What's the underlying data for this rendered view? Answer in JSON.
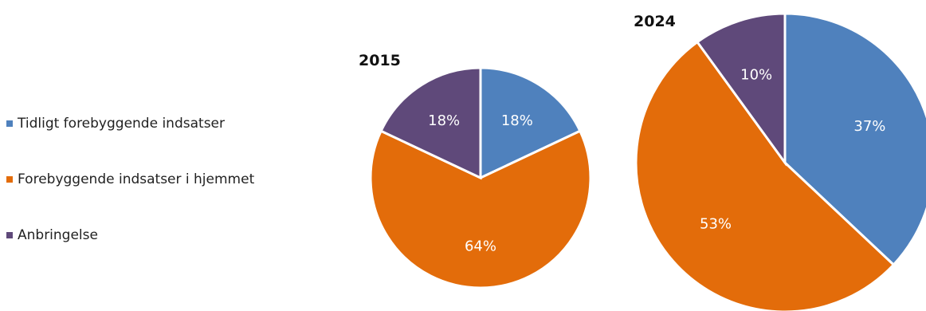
{
  "chart_data": [
    {
      "type": "pie",
      "title": "2015",
      "legend_placement": "left",
      "slices": [
        {
          "label": "Tidligt forebyggende indsatser",
          "value": 18,
          "value_label": "18%",
          "color": "#4f81bd"
        },
        {
          "label": "Forebyggende indsatser i hjemmet",
          "value": 64,
          "value_label": "64%",
          "color": "#e36c0a"
        },
        {
          "label": "Anbringelse",
          "value": 18,
          "value_label": "18%",
          "color": "#5f497a"
        }
      ]
    },
    {
      "type": "pie",
      "title": "2024",
      "legend_placement": "left",
      "slices": [
        {
          "label": "Tidligt forebyggende indsatser",
          "value": 37,
          "value_label": "37%",
          "color": "#4f81bd"
        },
        {
          "label": "Forebyggende indsatser i hjemmet",
          "value": 53,
          "value_label": "53%",
          "color": "#e36c0a"
        },
        {
          "label": "Anbringelse",
          "value": 10,
          "value_label": "10%",
          "color": "#5f497a"
        }
      ]
    }
  ],
  "legend": [
    {
      "label": "Tidligt forebyggende indsatser",
      "color": "#4f81bd"
    },
    {
      "label": "Forebyggende indsatser i hjemmet",
      "color": "#e36c0a"
    },
    {
      "label": "Anbringelse",
      "color": "#5f497a"
    }
  ]
}
